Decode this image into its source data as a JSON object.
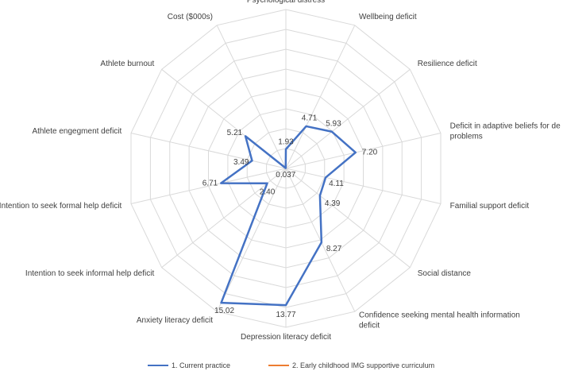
{
  "chart_data": {
    "type": "radar",
    "title": "",
    "axes": [
      "Psychological distress",
      "Wellbeing deficit",
      "Resilience deficit",
      "Deficit in adaptive beliefs for de problems",
      "Familial support deficit",
      "Social distance",
      "Confidence seeking mental health information deficit",
      "Depression literacy deficit",
      "Anxiety literacy deficit",
      "Intention to seek  informal help deficit",
      "Intention to seek formal help deficit",
      "Athlete engegment deficit",
      "Athlete burnout",
      "Cost ($000s)"
    ],
    "rmax": 16,
    "gridlines": 8,
    "series": [
      {
        "name": "1. Current practice",
        "color": "#4472c4",
        "values": [
          1.93,
          4.71,
          5.93,
          7.2,
          4.11,
          4.39,
          8.27,
          13.77,
          15.02,
          2.4,
          6.71,
          3.49,
          5.21,
          0.037
        ],
        "labels": [
          "1.93",
          "4.71",
          "5.93",
          "7.20",
          "4.11",
          "4.39",
          "8.27",
          "13.77",
          "15.02",
          "2.40",
          "6.71",
          "3.49",
          "5.21",
          "0.037"
        ]
      },
      {
        "name": "2. Early childhood IMG supportive curriculum",
        "color": "#ed7d31",
        "values": [
          0,
          0,
          0,
          0,
          0,
          0,
          0,
          0,
          0,
          0,
          0,
          0,
          0,
          0
        ]
      }
    ],
    "legend_position": "bottom"
  }
}
